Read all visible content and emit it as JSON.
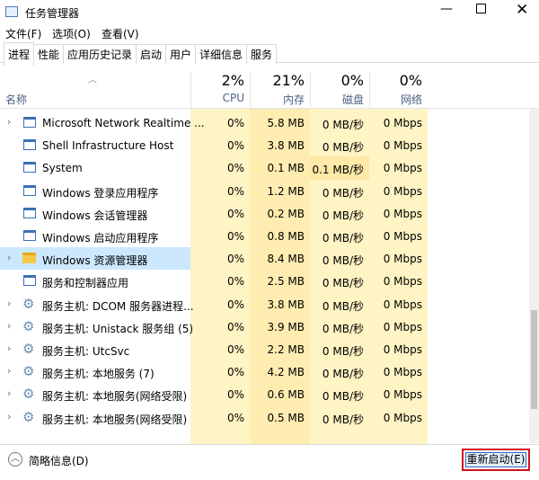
{
  "window": {
    "title": "任务管理器"
  },
  "menu": [
    "文件(F)",
    "选项(O)",
    "查看(V)"
  ],
  "tabs": {
    "items": [
      "进程",
      "性能",
      "应用历史记录",
      "启动",
      "用户",
      "详细信息",
      "服务"
    ],
    "active": 0
  },
  "table": {
    "name_header": "名称",
    "columns": [
      {
        "percent": "2%",
        "label": "CPU"
      },
      {
        "percent": "21%",
        "label": "内存"
      },
      {
        "percent": "0%",
        "label": "磁盘"
      },
      {
        "percent": "0%",
        "label": "网络"
      }
    ],
    "selected_row": 6,
    "rows": [
      {
        "name": "Microsoft Network Realtime ...",
        "cells": [
          "0%",
          "5.8 MB",
          "0 MB/秒",
          "0 Mbps"
        ],
        "icon": "window",
        "expandable": true
      },
      {
        "name": "Shell Infrastructure Host",
        "cells": [
          "0%",
          "3.8 MB",
          "0 MB/秒",
          "0 Mbps"
        ],
        "icon": "window",
        "expandable": false
      },
      {
        "name": "System",
        "cells": [
          "0%",
          "0.1 MB",
          "0.1 MB/秒",
          "0 Mbps"
        ],
        "icon": "window",
        "expandable": false
      },
      {
        "name": "Windows 登录应用程序",
        "cells": [
          "0%",
          "1.2 MB",
          "0 MB/秒",
          "0 Mbps"
        ],
        "icon": "window",
        "expandable": false
      },
      {
        "name": "Windows 会话管理器",
        "cells": [
          "0%",
          "0.2 MB",
          "0 MB/秒",
          "0 Mbps"
        ],
        "icon": "window",
        "expandable": false
      },
      {
        "name": "Windows 启动应用程序",
        "cells": [
          "0%",
          "0.8 MB",
          "0 MB/秒",
          "0 Mbps"
        ],
        "icon": "window",
        "expandable": false
      },
      {
        "name": "Windows 资源管理器",
        "cells": [
          "0%",
          "8.4 MB",
          "0 MB/秒",
          "0 Mbps"
        ],
        "icon": "folder",
        "expandable": true
      },
      {
        "name": "服务和控制器应用",
        "cells": [
          "0%",
          "2.5 MB",
          "0 MB/秒",
          "0 Mbps"
        ],
        "icon": "window",
        "expandable": false
      },
      {
        "name": "服务主机: DCOM 服务器进程...",
        "cells": [
          "0%",
          "3.8 MB",
          "0 MB/秒",
          "0 Mbps"
        ],
        "icon": "gear",
        "expandable": true
      },
      {
        "name": "服务主机: Unistack 服务组 (5)",
        "cells": [
          "0%",
          "3.9 MB",
          "0 MB/秒",
          "0 Mbps"
        ],
        "icon": "gear",
        "expandable": true
      },
      {
        "name": "服务主机: UtcSvc",
        "cells": [
          "0%",
          "2.2 MB",
          "0 MB/秒",
          "0 Mbps"
        ],
        "icon": "gear",
        "expandable": true
      },
      {
        "name": "服务主机: 本地服务 (7)",
        "cells": [
          "0%",
          "4.2 MB",
          "0 MB/秒",
          "0 Mbps"
        ],
        "icon": "gear",
        "expandable": true
      },
      {
        "name": "服务主机: 本地服务(网络受限)",
        "cells": [
          "0%",
          "0.6 MB",
          "0 MB/秒",
          "0 Mbps"
        ],
        "icon": "gear",
        "expandable": true
      },
      {
        "name": "服务主机: 本地服务(网络受限)",
        "cells": [
          "0%",
          "0.5 MB",
          "0 MB/秒",
          "0 Mbps"
        ],
        "icon": "gear",
        "expandable": true
      }
    ]
  },
  "footer": {
    "details": "简略信息(D)",
    "button": "重新启动(E)"
  }
}
